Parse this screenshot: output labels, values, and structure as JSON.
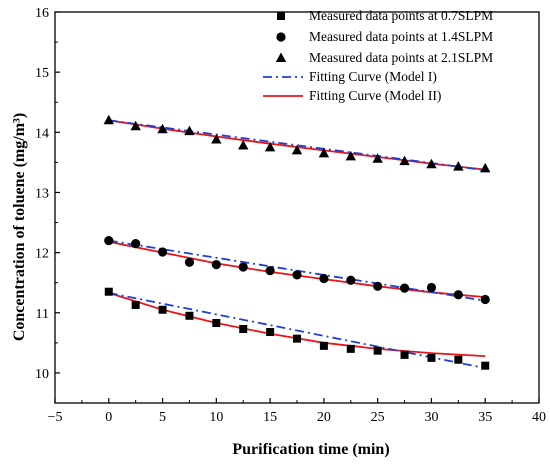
{
  "chart_data": {
    "type": "scatter",
    "xlabel": "Purification time (min)",
    "ylabel": "Concentration of toluene (mg/m³)",
    "xlim": [
      -5,
      40
    ],
    "ylim": [
      9.5,
      16
    ],
    "x_ticks": [
      -5,
      0,
      5,
      10,
      15,
      20,
      25,
      30,
      35,
      40
    ],
    "y_ticks": [
      10,
      11,
      12,
      13,
      14,
      15,
      16
    ],
    "grid": false,
    "legend_position": "top-right",
    "colors": {
      "model1": "#1f3fd6",
      "model2": "#e8161a",
      "points": "#000000"
    },
    "series": [
      {
        "name": "Measured data points at 0.7SLPM",
        "marker": "square",
        "x": [
          0,
          2.5,
          5,
          7.5,
          10,
          12.5,
          15,
          17.5,
          20,
          22.5,
          25,
          27.5,
          30,
          32.5,
          35
        ],
        "y": [
          11.35,
          11.13,
          11.05,
          10.95,
          10.83,
          10.73,
          10.68,
          10.57,
          10.45,
          10.4,
          10.37,
          10.3,
          10.25,
          10.22,
          10.12
        ]
      },
      {
        "name": "Measured data points at 1.4SLPM",
        "marker": "circle",
        "x": [
          0,
          2.5,
          5,
          7.5,
          10,
          12.5,
          15,
          17.5,
          20,
          22.5,
          25,
          27.5,
          30,
          32.5,
          35
        ],
        "y": [
          12.2,
          12.15,
          12.01,
          11.84,
          11.8,
          11.76,
          11.7,
          11.63,
          11.57,
          11.54,
          11.44,
          11.41,
          11.42,
          11.3,
          11.22
        ]
      },
      {
        "name": "Measured data points at 2.1SLPM",
        "marker": "triangle",
        "x": [
          0,
          2.5,
          5,
          7.5,
          10,
          12.5,
          15,
          17.5,
          20,
          22.5,
          25,
          27.5,
          30,
          32.5,
          35
        ],
        "y": [
          14.2,
          14.1,
          14.05,
          14.02,
          13.88,
          13.78,
          13.75,
          13.7,
          13.65,
          13.6,
          13.56,
          13.52,
          13.47,
          13.43,
          13.4
        ]
      },
      {
        "name": "Fitting Curve (Model I)",
        "style": "dash-dot",
        "lines": [
          {
            "x": [
              0,
              35
            ],
            "y": [
              11.33,
              10.08
            ]
          },
          {
            "x": [
              0,
              35
            ],
            "y": [
              12.2,
              11.2
            ]
          },
          {
            "x": [
              0,
              35
            ],
            "y": [
              14.2,
              13.37
            ]
          }
        ]
      },
      {
        "name": "Fitting Curve (Model II)",
        "style": "solid",
        "lines": [
          {
            "x": [
              0,
              5,
              10,
              15,
              20,
              25,
              30,
              35
            ],
            "y": [
              11.33,
              11.05,
              10.83,
              10.65,
              10.5,
              10.4,
              10.33,
              10.28
            ]
          },
          {
            "x": [
              0,
              5,
              10,
              15,
              20,
              25,
              30,
              35
            ],
            "y": [
              12.18,
              12.0,
              11.82,
              11.68,
              11.56,
              11.44,
              11.34,
              11.26
            ]
          },
          {
            "x": [
              0,
              5,
              10,
              15,
              20,
              25,
              30,
              35
            ],
            "y": [
              14.2,
              14.06,
              13.93,
              13.81,
              13.7,
              13.59,
              13.48,
              13.38
            ]
          }
        ]
      }
    ]
  }
}
